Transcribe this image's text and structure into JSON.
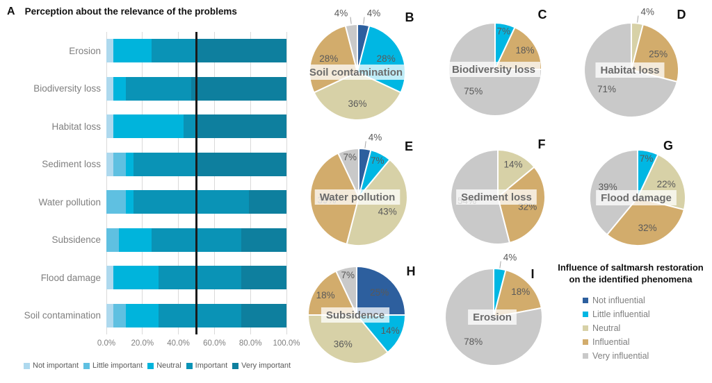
{
  "panel_a": {
    "letter": "A",
    "title": "Perception about the relevance of the problems",
    "x_tick_labels": [
      "0.0%",
      "20.0%",
      "40.0%",
      "60.0%",
      "80.0%",
      "100.0%"
    ],
    "legend": [
      "Not important",
      "Little important",
      "Neutral",
      "Important",
      "Very important"
    ]
  },
  "influence_legend": {
    "title_line1": "Influence of saltmarsh restoration",
    "title_line2": "on the identified phenomena",
    "items": [
      "Not influential",
      "Little influential",
      "Neutral",
      "Influential",
      "Very influential"
    ]
  },
  "colors": {
    "importance": {
      "Not important": "#aed9ee",
      "Little important": "#5fc0e1",
      "Neutral": "#00b4dc",
      "Important": "#0a93b6",
      "Very important": "#0e7f9e"
    },
    "influence": {
      "Not influential": "#2d5f9e",
      "Little influential": "#00b7e3",
      "Neutral": "#d7d1a7",
      "Influential": "#d2ac6c",
      "Very influential": "#c9c9c9"
    },
    "grid": "#d9d9d9",
    "reference_line": "#1a1a1a",
    "percent_label": "#595959",
    "axis_text": "#7f7f7f",
    "pie_center_label": "#6b6b6b"
  },
  "chart_data": [
    {
      "type": "bar",
      "panel": "A",
      "title": "Perception about the relevance of the problems",
      "orientation": "horizontal_stacked_percent",
      "categories": [
        "Erosion",
        "Biodiversity loss",
        "Habitat loss",
        "Sediment loss",
        "Water pollution",
        "Subsidence",
        "Flood damage",
        "Soil contamination"
      ],
      "series": [
        {
          "name": "Not important",
          "values": [
            4,
            4,
            4,
            4,
            0,
            0,
            4,
            4
          ]
        },
        {
          "name": "Little important",
          "values": [
            0,
            0,
            0,
            7,
            11,
            7,
            0,
            7
          ]
        },
        {
          "name": "Neutral",
          "values": [
            21,
            7,
            39,
            4,
            4,
            18,
            25,
            18
          ]
        },
        {
          "name": "Important",
          "values": [
            25,
            36,
            7,
            35,
            64,
            50,
            46,
            46
          ]
        },
        {
          "name": "Very important",
          "values": [
            50,
            53,
            50,
            50,
            21,
            25,
            25,
            25
          ]
        }
      ],
      "xlim": [
        0,
        100
      ],
      "x_ticks": [
        0,
        20,
        40,
        60,
        80,
        100
      ],
      "reference_line_x": 50,
      "grid": "vertical",
      "legend_position": "bottom"
    },
    {
      "type": "pie",
      "panel": "B",
      "label": "Soil contamination",
      "slices": [
        {
          "name": "Not influential",
          "value": 4
        },
        {
          "name": "Little influential",
          "value": 28
        },
        {
          "name": "Neutral",
          "value": 36
        },
        {
          "name": "Influential",
          "value": 28
        },
        {
          "name": "Very influential",
          "value": 4
        }
      ]
    },
    {
      "type": "pie",
      "panel": "C",
      "label": "Biodiversity loss",
      "slices": [
        {
          "name": "Little influential",
          "value": 7
        },
        {
          "name": "Influential",
          "value": 18
        },
        {
          "name": "Very influential",
          "value": 75
        }
      ]
    },
    {
      "type": "pie",
      "panel": "D",
      "label": "Habitat loss",
      "slices": [
        {
          "name": "Neutral",
          "value": 4
        },
        {
          "name": "Influential",
          "value": 25
        },
        {
          "name": "Very influential",
          "value": 71
        }
      ]
    },
    {
      "type": "pie",
      "panel": "E",
      "label": "Water pollution",
      "slices": [
        {
          "name": "Not influential",
          "value": 4
        },
        {
          "name": "Little influential",
          "value": 7
        },
        {
          "name": "Neutral",
          "value": 43
        },
        {
          "name": "Influential",
          "value": 39
        },
        {
          "name": "Very influential",
          "value": 7
        }
      ]
    },
    {
      "type": "pie",
      "panel": "F",
      "label": "Sediment loss",
      "slices": [
        {
          "name": "Neutral",
          "value": 14
        },
        {
          "name": "Influential",
          "value": 32
        },
        {
          "name": "Very influential",
          "value": 54
        }
      ]
    },
    {
      "type": "pie",
      "panel": "G",
      "label": "Flood damage",
      "slices": [
        {
          "name": "Little influential",
          "value": 7
        },
        {
          "name": "Neutral",
          "value": 22
        },
        {
          "name": "Influential",
          "value": 32
        },
        {
          "name": "Very influential",
          "value": 39
        }
      ]
    },
    {
      "type": "pie",
      "panel": "H",
      "label": "Subsidence",
      "slices": [
        {
          "name": "Not influential",
          "value": 25
        },
        {
          "name": "Little influential",
          "value": 14
        },
        {
          "name": "Neutral",
          "value": 36
        },
        {
          "name": "Influential",
          "value": 18
        },
        {
          "name": "Very influential",
          "value": 7
        }
      ]
    },
    {
      "type": "pie",
      "panel": "I",
      "label": "Erosion",
      "slices": [
        {
          "name": "Little influential",
          "value": 4
        },
        {
          "name": "Influential",
          "value": 18
        },
        {
          "name": "Very influential",
          "value": 78
        }
      ]
    }
  ]
}
